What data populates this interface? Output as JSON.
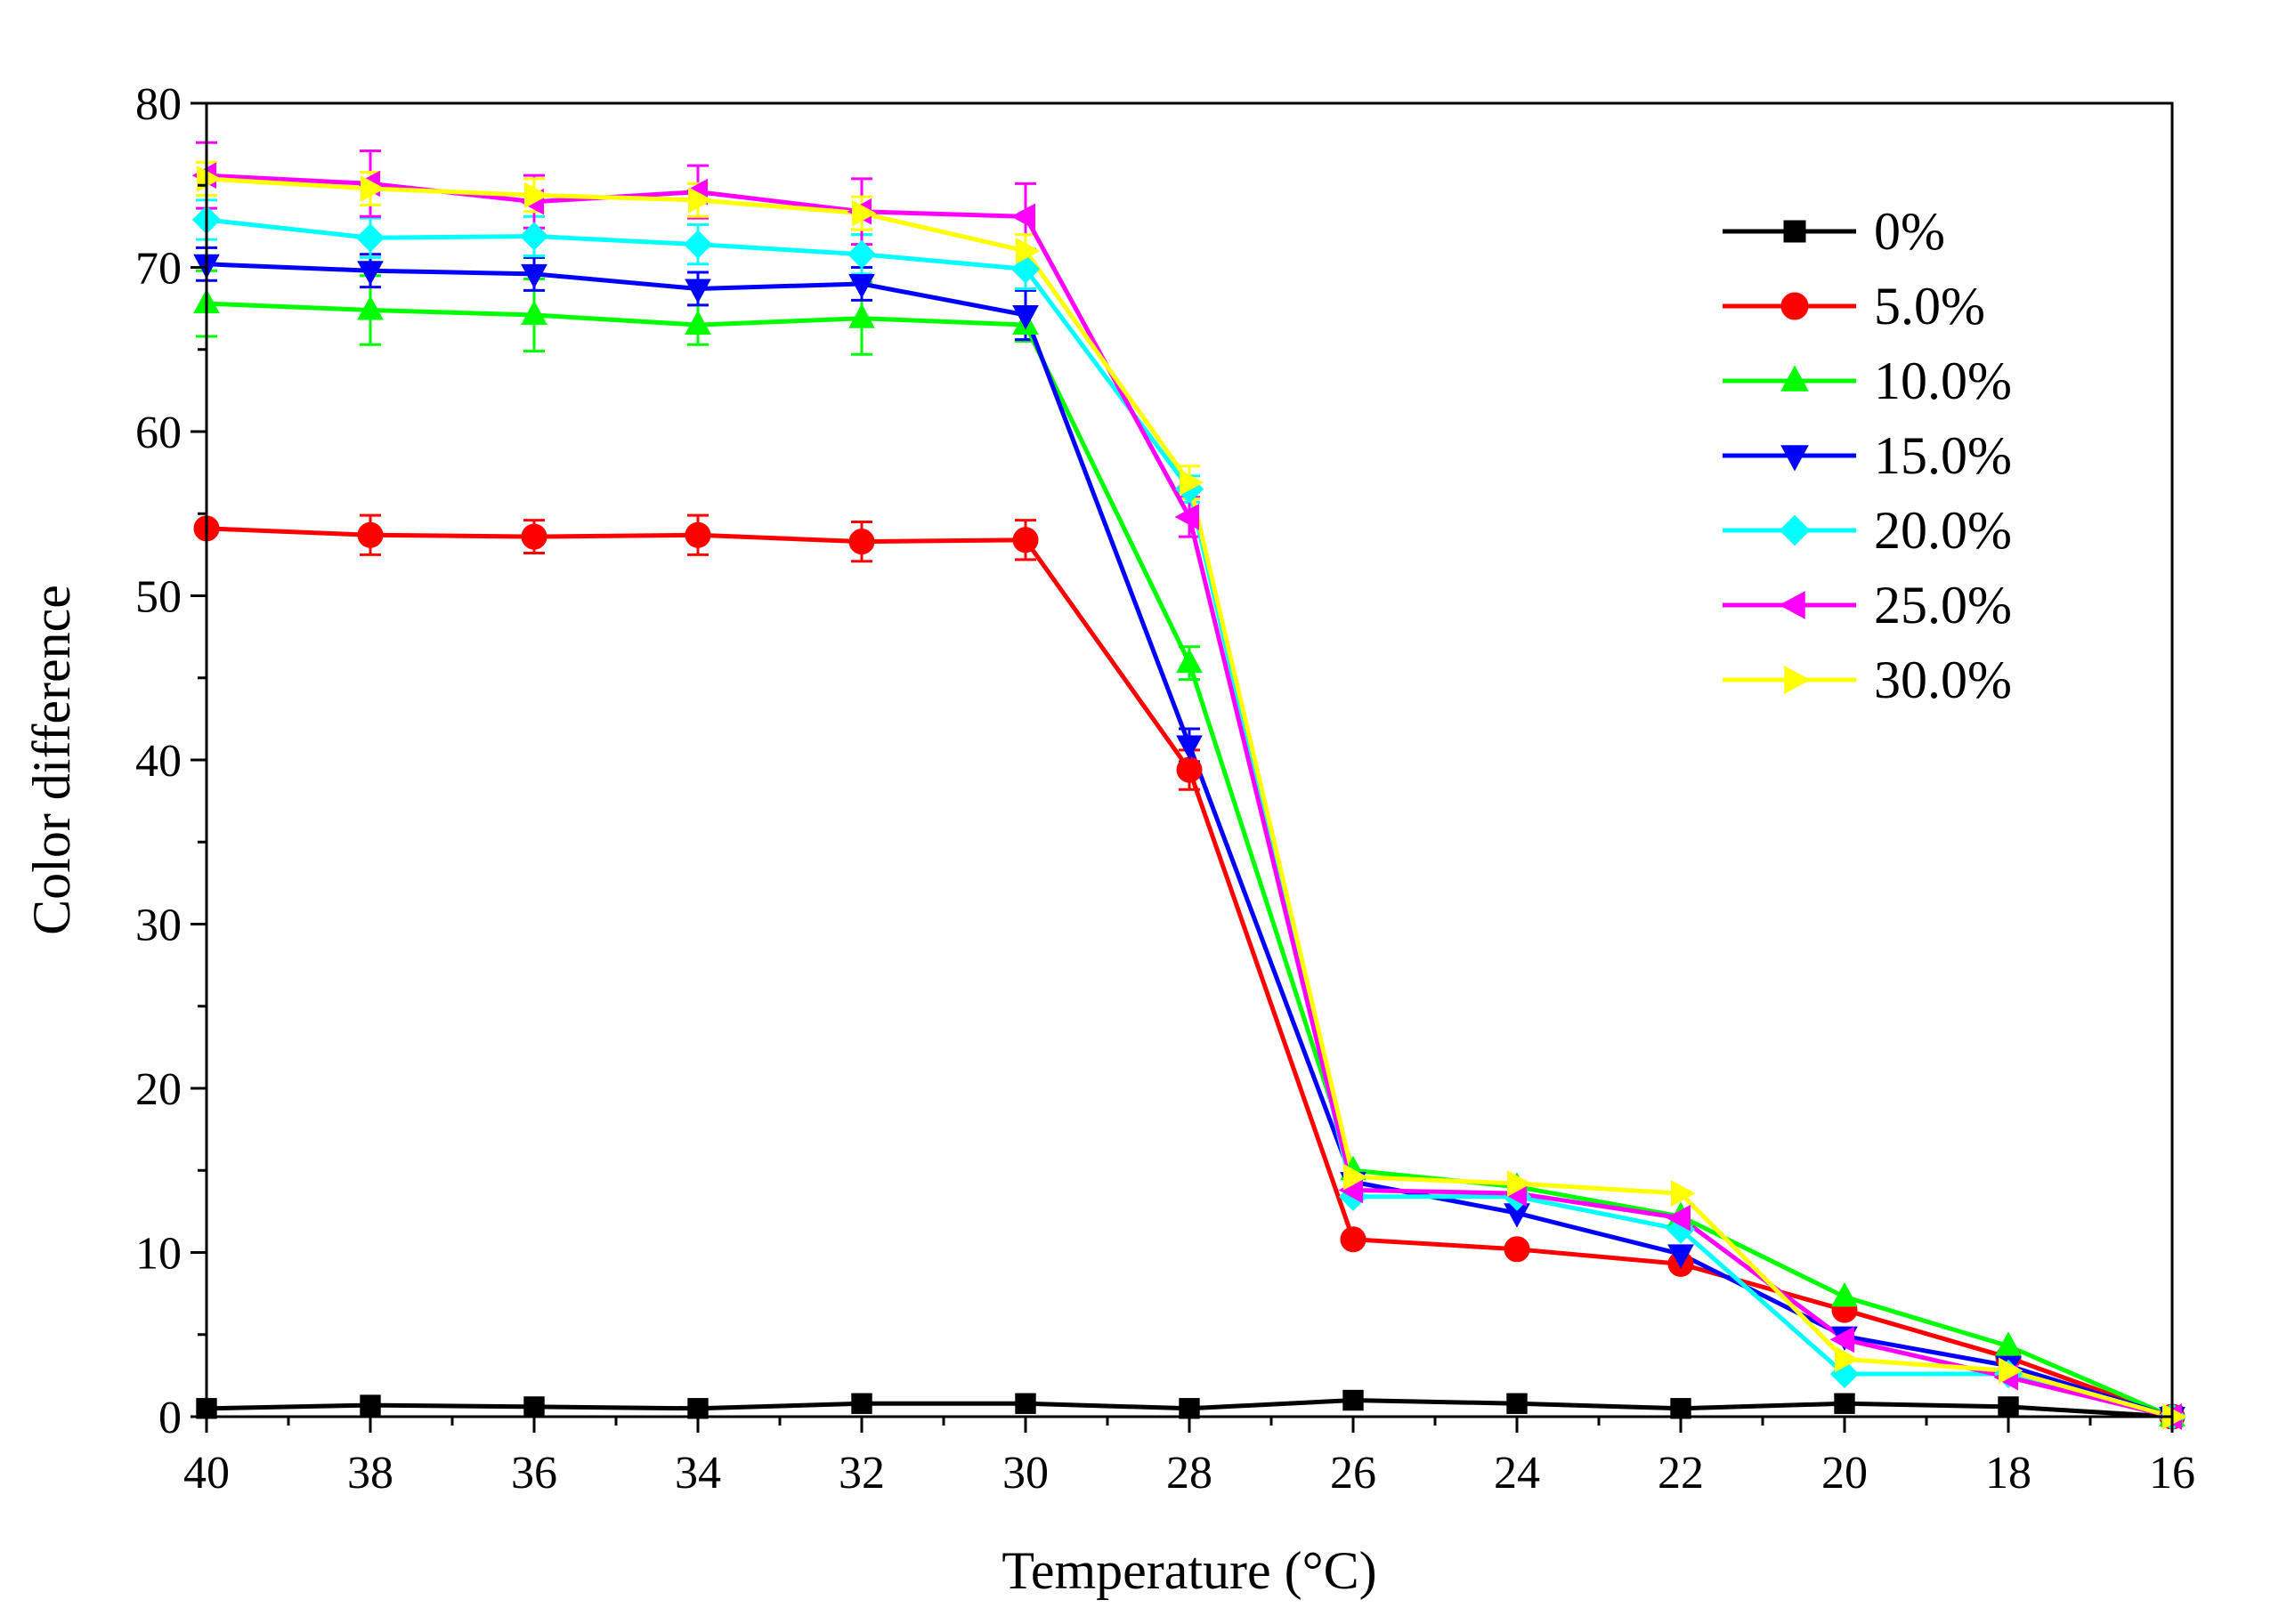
{
  "chart_data": {
    "type": "line",
    "title": "",
    "xlabel": "Temperature (°C)",
    "ylabel": "Color difference",
    "x": [
      40,
      38,
      36,
      34,
      32,
      30,
      28,
      26,
      24,
      22,
      20,
      18,
      16
    ],
    "xlim": [
      40,
      16
    ],
    "ylim": [
      0,
      80
    ],
    "x_ticks": [
      "40",
      "38",
      "36",
      "34",
      "32",
      "30",
      "28",
      "26",
      "24",
      "22",
      "20",
      "18",
      "16"
    ],
    "y_ticks": [
      "0",
      "10",
      "20",
      "30",
      "40",
      "50",
      "60",
      "70",
      "80"
    ],
    "legend_position": "top-right",
    "series": [
      {
        "name": "0%",
        "color": "#000000",
        "marker": "square",
        "values": [
          0.5,
          0.7,
          0.6,
          0.5,
          0.8,
          0.8,
          0.5,
          1.0,
          0.8,
          0.5,
          0.8,
          0.6,
          0
        ],
        "errors": [
          0,
          0,
          0,
          0,
          0,
          0,
          0,
          0,
          0,
          0,
          0,
          0,
          0
        ]
      },
      {
        "name": "5.0%",
        "color": "#ff0000",
        "marker": "circle",
        "values": [
          54.1,
          53.7,
          53.6,
          53.7,
          53.3,
          53.4,
          39.4,
          10.8,
          10.2,
          9.3,
          6.5,
          3.6,
          0
        ],
        "errors": [
          0,
          1.2,
          1.0,
          1.2,
          1.2,
          1.2,
          1.2,
          0,
          0,
          0,
          0,
          0,
          0
        ]
      },
      {
        "name": "10.0%",
        "color": "#00ff00",
        "marker": "triangle-up",
        "values": [
          67.8,
          67.4,
          67.1,
          66.5,
          66.9,
          66.5,
          45.9,
          15.0,
          14.0,
          12.2,
          7.3,
          4.3,
          0
        ],
        "errors": [
          2.0,
          2.1,
          2.2,
          1.2,
          2.2,
          1.0,
          1.0,
          0,
          0,
          0,
          0,
          0,
          0
        ]
      },
      {
        "name": "15.0%",
        "color": "#0000ff",
        "marker": "triangle-down",
        "values": [
          70.2,
          69.8,
          69.6,
          68.7,
          69.0,
          67.1,
          40.9,
          14.3,
          12.4,
          9.9,
          4.9,
          3.1,
          0
        ],
        "errors": [
          1.0,
          1.0,
          1.0,
          1.0,
          1.0,
          1.5,
          1.0,
          0,
          0,
          0,
          0,
          0,
          0
        ]
      },
      {
        "name": "20.0%",
        "color": "#00ffff",
        "marker": "diamond",
        "values": [
          72.9,
          71.8,
          71.9,
          71.4,
          70.8,
          69.9,
          56.5,
          13.4,
          13.4,
          11.4,
          2.6,
          2.6,
          0
        ],
        "errors": [
          1.2,
          1.2,
          1.2,
          1.2,
          1.2,
          1.2,
          0.8,
          0,
          0,
          0,
          0,
          0,
          0
        ]
      },
      {
        "name": "25.0%",
        "color": "#ff00ff",
        "marker": "triangle-left",
        "values": [
          75.6,
          75.1,
          74.0,
          74.6,
          73.4,
          73.1,
          54.8,
          13.8,
          13.6,
          12.1,
          4.7,
          2.4,
          0
        ],
        "errors": [
          2.0,
          2.0,
          1.6,
          1.6,
          2.0,
          2.0,
          1.2,
          0,
          0,
          0,
          0,
          0,
          0
        ]
      },
      {
        "name": "30.0%",
        "color": "#ffff00",
        "marker": "triangle-right",
        "values": [
          75.4,
          74.8,
          74.4,
          74.1,
          73.3,
          71.0,
          56.9,
          14.6,
          14.2,
          13.6,
          3.5,
          2.8,
          0
        ],
        "errors": [
          1.0,
          1.0,
          1.0,
          1.0,
          1.0,
          1.0,
          1.0,
          0,
          0,
          0,
          0,
          0,
          0
        ]
      }
    ]
  }
}
